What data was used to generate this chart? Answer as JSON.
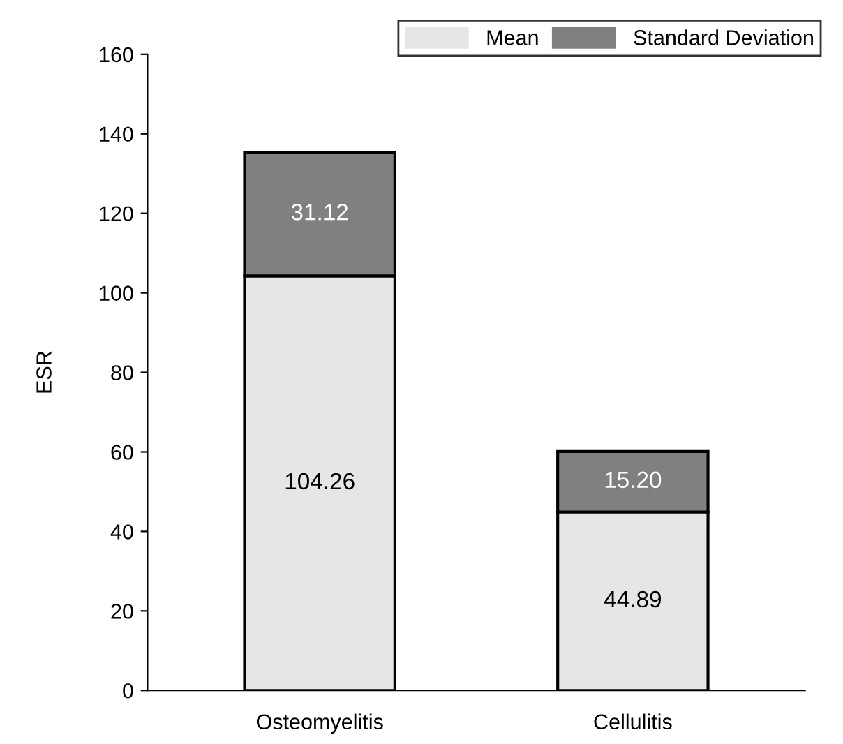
{
  "chart_data": {
    "type": "bar",
    "stacked": true,
    "ylabel": "ESR",
    "categories": [
      "Osteomyelitis",
      "Cellulitis"
    ],
    "series": [
      {
        "name": "Mean",
        "color": "#e6e6e6",
        "values": [
          104.26,
          44.89
        ],
        "value_labels": [
          "104.26",
          "44.89"
        ]
      },
      {
        "name": "Standard Deviation",
        "color": "#808080",
        "values": [
          31.12,
          15.2
        ],
        "value_labels": [
          "31.12",
          "15.20"
        ]
      }
    ],
    "ylim": [
      0,
      160
    ],
    "yticks": [
      0,
      20,
      40,
      60,
      80,
      100,
      120,
      140,
      160
    ],
    "grid": false,
    "legend": "top right"
  }
}
